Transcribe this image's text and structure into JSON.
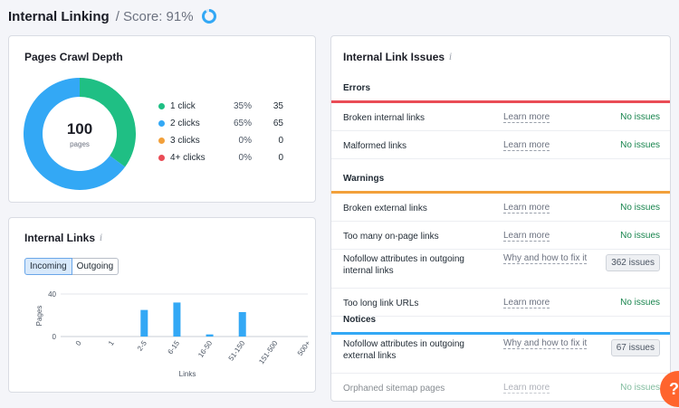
{
  "header": {
    "title": "Internal Linking",
    "score": "/ Score: 91%",
    "score_value": 91
  },
  "crawl_depth": {
    "title": "Pages Crawl Depth",
    "total": "100",
    "total_unit": "pages",
    "legend": [
      {
        "label": "1 click",
        "pct": "35%",
        "count": "35",
        "value": 35,
        "color": "#1fbf84"
      },
      {
        "label": "2 clicks",
        "pct": "65%",
        "count": "65",
        "value": 65,
        "color": "#33a8f5"
      },
      {
        "label": "3 clicks",
        "pct": "0%",
        "count": "0",
        "value": 0,
        "color": "#f2a03a"
      },
      {
        "label": "4+ clicks",
        "pct": "0%",
        "count": "0",
        "value": 0,
        "color": "#ea4c56"
      }
    ]
  },
  "internal_links": {
    "title": "Internal Links",
    "tabs": [
      "Incoming",
      "Outgoing"
    ],
    "active_tab": "Incoming"
  },
  "chart_data": {
    "type": "bar",
    "categories": [
      "0",
      "1",
      "2-5",
      "6-15",
      "16-50",
      "51-150",
      "151-500",
      "500+"
    ],
    "values": [
      0,
      0,
      25,
      32,
      2,
      23,
      0,
      0
    ],
    "xlabel": "Links",
    "ylabel": "Pages",
    "yticks": [
      "0",
      "40"
    ],
    "ylim": [
      0,
      40
    ],
    "color": "#33a8f5",
    "grid": true
  },
  "issues": {
    "title": "Internal Link Issues",
    "sections": [
      {
        "label": "Errors",
        "color": "#ea4c56",
        "rows": [
          {
            "name": "Broken internal links",
            "link": "Learn more",
            "status": "No issues"
          },
          {
            "name": "Malformed links",
            "link": "Learn more",
            "status": "No issues"
          }
        ]
      },
      {
        "label": "Warnings",
        "color": "#f2a03a",
        "rows": [
          {
            "name": "Broken external links",
            "link": "Learn more",
            "status": "No issues"
          },
          {
            "name": "Too many on-page links",
            "link": "Learn more",
            "status": "No issues"
          },
          {
            "name": "Nofollow attributes in outgoing internal links",
            "link": "Why and how to fix it",
            "badge": "362 issues"
          },
          {
            "name": "Too long link URLs",
            "link": "Learn more",
            "status": "No issues"
          }
        ]
      },
      {
        "label": "Notices",
        "color": "#33a8f5",
        "rows": [
          {
            "name": "Nofollow attributes in outgoing external links",
            "link": "Why and how to fix it",
            "badge": "67 issues"
          },
          {
            "name": "Orphaned sitemap pages",
            "link": "Learn more",
            "status": "No issues",
            "faded": true
          }
        ]
      }
    ]
  },
  "help": {
    "label": "?"
  }
}
